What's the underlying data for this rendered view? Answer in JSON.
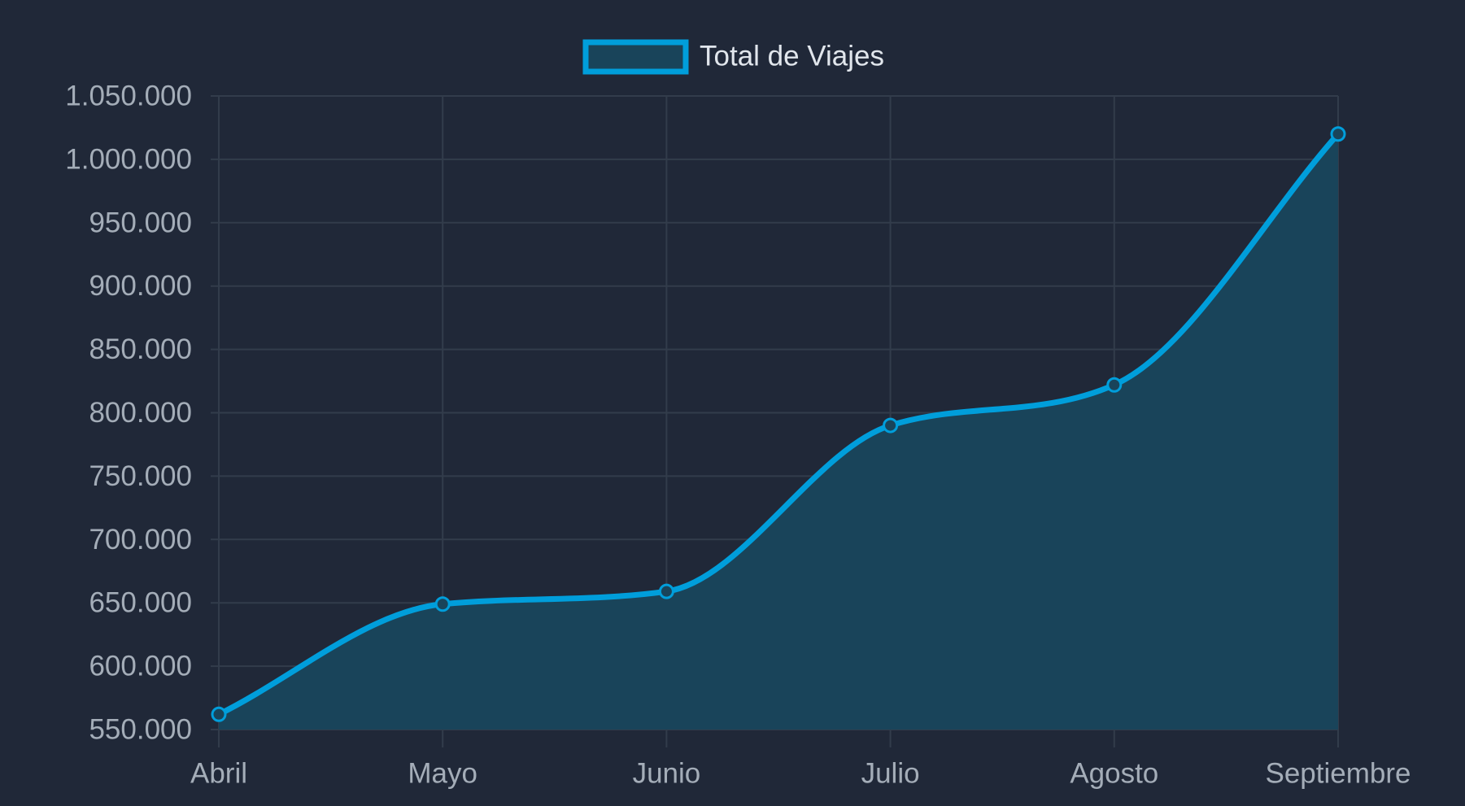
{
  "chart_data": {
    "type": "area",
    "title": "",
    "xlabel": "",
    "ylabel": "",
    "categories": [
      "Abril",
      "Mayo",
      "Junio",
      "Julio",
      "Agosto",
      "Septiembre"
    ],
    "series": [
      {
        "name": "Total de Viajes",
        "values": [
          562000,
          649000,
          659000,
          790000,
          822000,
          1020000
        ]
      }
    ],
    "ylim": [
      550000,
      1050000
    ],
    "y_ticks": [
      550000,
      600000,
      650000,
      700000,
      750000,
      800000,
      850000,
      900000,
      950000,
      1000000,
      1050000
    ],
    "y_tick_labels": [
      "550.000",
      "600.000",
      "650.000",
      "700.000",
      "750.000",
      "800.000",
      "850.000",
      "900.000",
      "950.000",
      "1.000.000",
      "1.050.000"
    ],
    "grid": true,
    "legend": "top-center",
    "colors": {
      "background": "#202838",
      "line": "#009edb",
      "fill": "#19445a",
      "grid": "#323c4b",
      "tick_text": "#a4adb8",
      "legend_text": "#e1e6ec"
    }
  }
}
